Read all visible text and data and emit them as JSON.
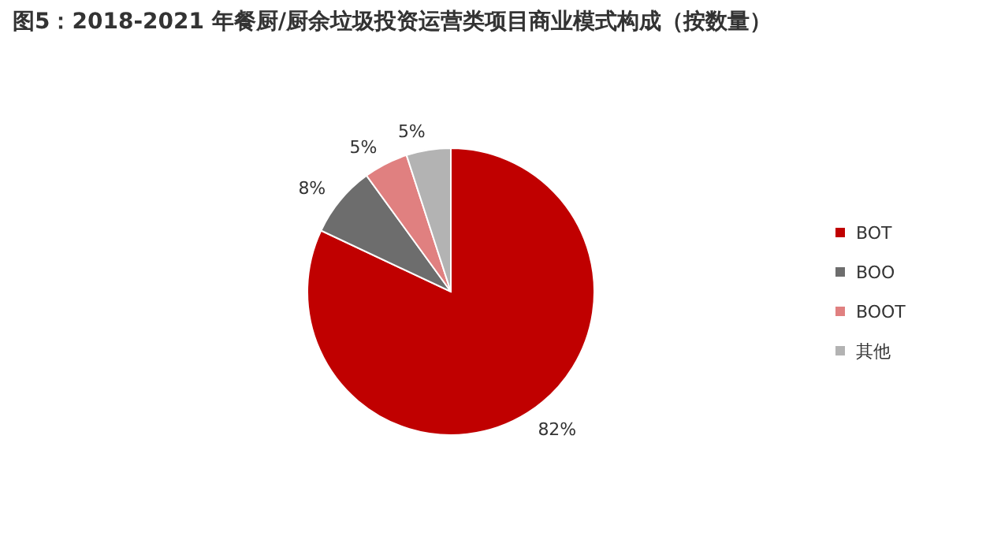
{
  "chart_data": {
    "type": "pie",
    "title": "图5：2018-2021 年餐厨/厨余垃圾投资运营类项目商业模式构成（按数量）",
    "categories": [
      "BOT",
      "BOO",
      "BOOT",
      "其他"
    ],
    "values": [
      82,
      8,
      5,
      5
    ],
    "colors": [
      "#c00000",
      "#6d6d6d",
      "#e08080",
      "#b3b3b3"
    ],
    "value_labels": [
      "82%",
      "8%",
      "5%",
      "5%"
    ],
    "legend": "right"
  }
}
